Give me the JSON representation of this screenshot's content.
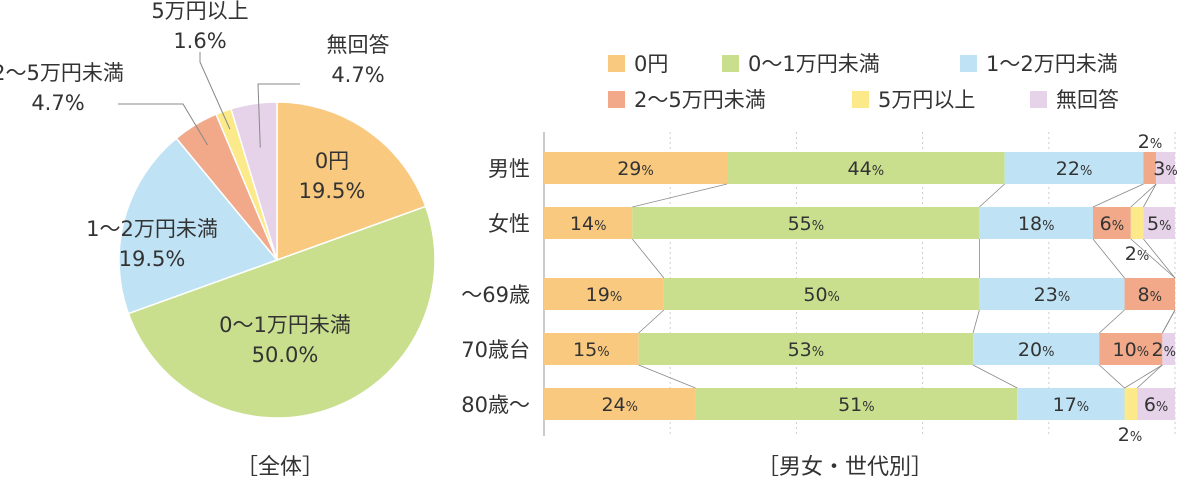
{
  "chart_data": [
    {
      "type": "pie",
      "title": "［全体］",
      "slices": [
        {
          "key": "c0",
          "label": "0円",
          "value": 19.5,
          "display": "19.5%"
        },
        {
          "key": "c1",
          "label": "0〜1万円未満",
          "value": 50.0,
          "display": "50.0%"
        },
        {
          "key": "c2",
          "label": "1〜2万円未満",
          "value": 19.5,
          "display": "19.5%"
        },
        {
          "key": "c3",
          "label": "2〜5万円未満",
          "value": 4.7,
          "display": "4.7%"
        },
        {
          "key": "c4",
          "label": "5万円以上",
          "value": 1.6,
          "display": "1.6%"
        },
        {
          "key": "c5",
          "label": "無回答",
          "value": 4.7,
          "display": "4.7%"
        }
      ]
    },
    {
      "type": "bar",
      "orientation": "horizontal-stacked-100",
      "title": "［男女・世代別］",
      "categories": [
        "男性",
        "女性",
        "〜69歳",
        "70歳台",
        "80歳〜"
      ],
      "series": [
        {
          "key": "c0",
          "name": "0円",
          "values": [
            29,
            14,
            19,
            15,
            24
          ]
        },
        {
          "key": "c1",
          "name": "0〜1万円未満",
          "values": [
            44,
            55,
            50,
            53,
            51
          ]
        },
        {
          "key": "c2",
          "name": "1〜2万円未満",
          "values": [
            22,
            18,
            23,
            20,
            17
          ]
        },
        {
          "key": "c3",
          "name": "2〜5万円未満",
          "values": [
            2,
            6,
            8,
            10,
            0
          ]
        },
        {
          "key": "c4",
          "name": "5万円以上",
          "values": [
            0,
            2,
            0,
            0,
            2
          ]
        },
        {
          "key": "c5",
          "name": "無回答",
          "values": [
            3,
            5,
            0,
            2,
            6
          ]
        }
      ],
      "legend_order": [
        "c0",
        "c1",
        "c2",
        "c3",
        "c4",
        "c5"
      ],
      "legend_position": "top"
    }
  ],
  "colors": {
    "c0": "#f8c97f",
    "c1": "#c9df8e",
    "c2": "#bfe3f5",
    "c3": "#f1a98a",
    "c4": "#fbe98a",
    "c5": "#e6d3e9",
    "text": "#333333",
    "line": "#888888"
  },
  "percent_sign": "%"
}
